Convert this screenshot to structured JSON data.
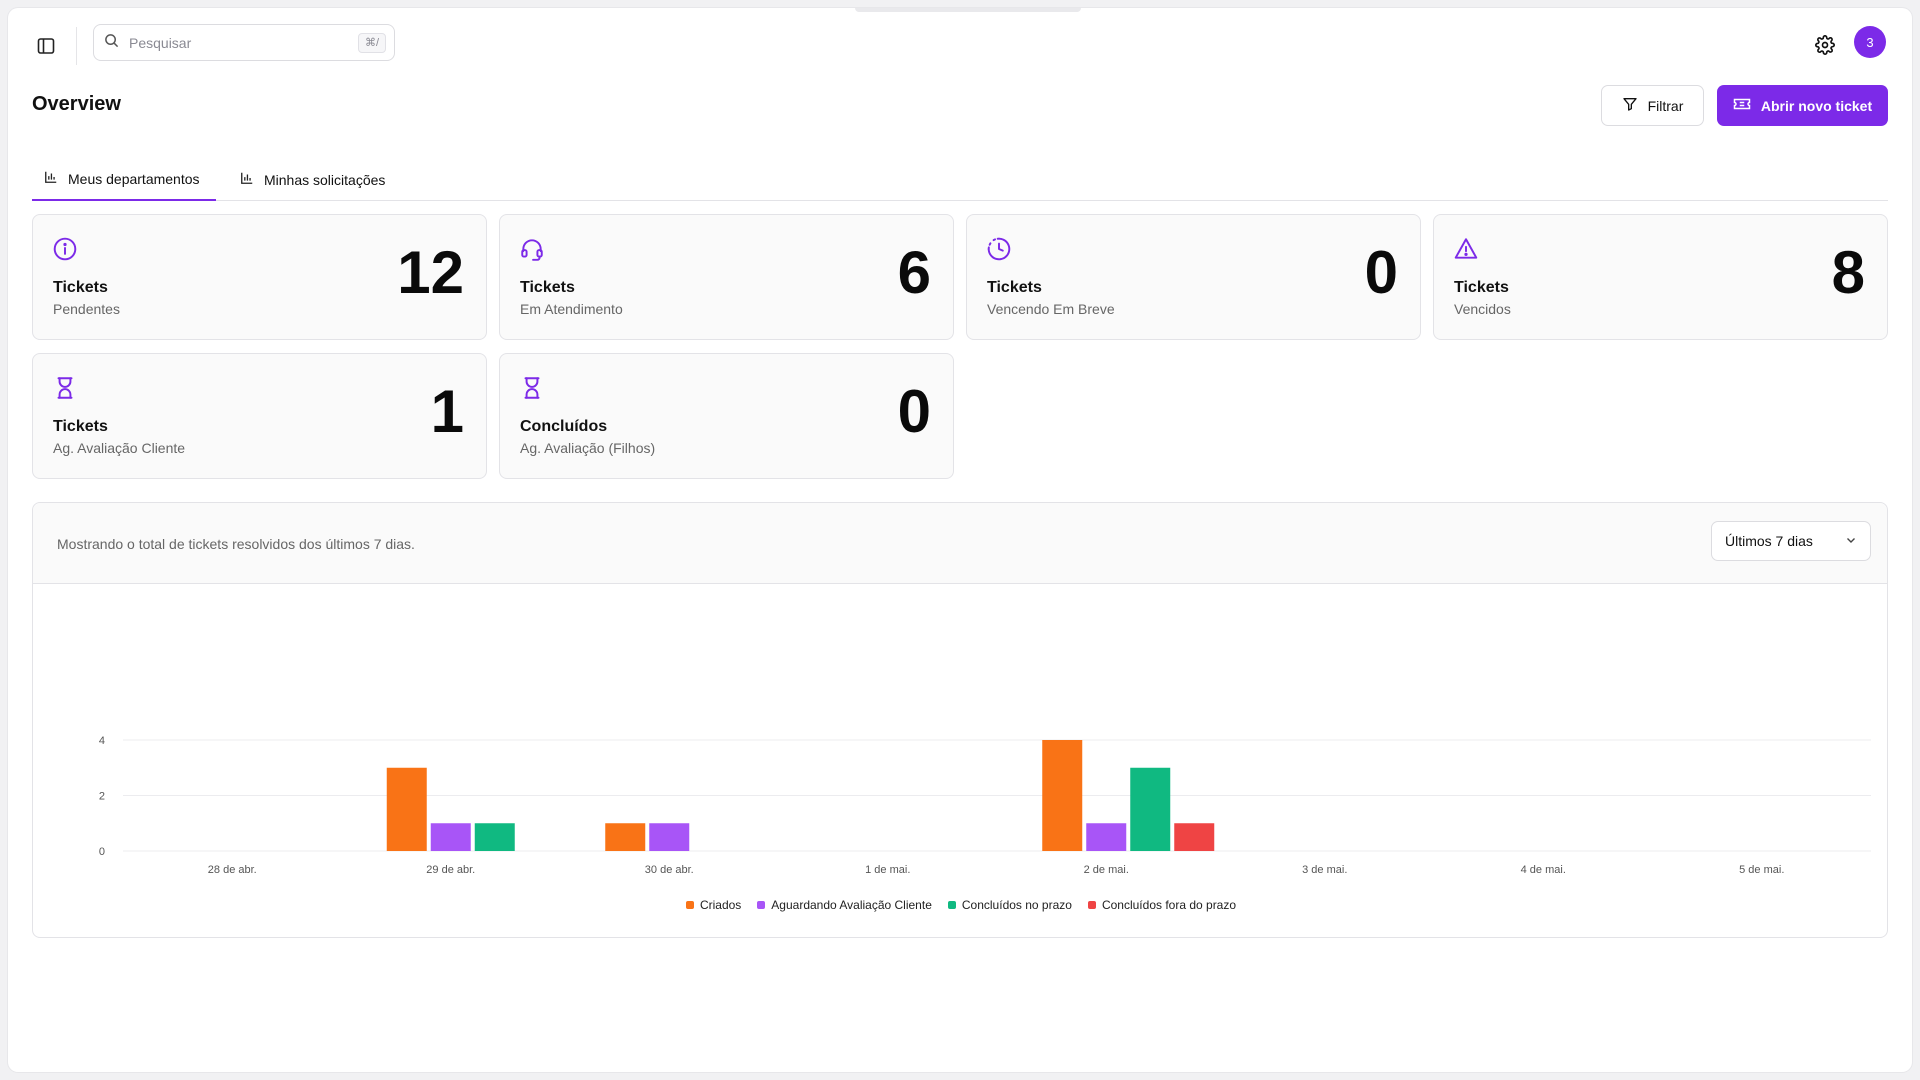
{
  "search": {
    "placeholder": "Pesquisar",
    "shortcut": "⌘/"
  },
  "user": {
    "avatar_text": "3"
  },
  "header": {
    "title": "Overview",
    "filter_label": "Filtrar",
    "new_ticket_label": "Abrir novo ticket"
  },
  "tabs": [
    {
      "label": "Meus departamentos",
      "active": true
    },
    {
      "label": "Minhas solicitações",
      "active": false
    }
  ],
  "cards": [
    {
      "icon": "info-icon",
      "title": "Tickets",
      "subtitle": "Pendentes",
      "value": "12"
    },
    {
      "icon": "headset-icon",
      "title": "Tickets",
      "subtitle": "Em Atendimento",
      "value": "6"
    },
    {
      "icon": "clock-icon",
      "title": "Tickets",
      "subtitle": "Vencendo Em Breve",
      "value": "0"
    },
    {
      "icon": "warning-icon",
      "title": "Tickets",
      "subtitle": "Vencidos",
      "value": "8"
    },
    {
      "icon": "hourglass-icon",
      "title": "Tickets",
      "subtitle": "Ag. Avaliação Cliente",
      "value": "1"
    },
    {
      "icon": "hourglass-icon",
      "title": "Concluídos",
      "subtitle": "Ag. Avaliação (Filhos)",
      "value": "0"
    }
  ],
  "panel": {
    "description": "Mostrando o total de tickets resolvidos dos últimos 7 dias.",
    "range_label": "Últimos 7 dias"
  },
  "colors": {
    "accent": "#7c2ae8",
    "orange": "#f97316",
    "purple": "#a855f7",
    "green": "#10b981",
    "red": "#ef4444"
  },
  "chart_data": {
    "type": "bar",
    "categories": [
      "28 de abr.",
      "29 de abr.",
      "30 de abr.",
      "1 de mai.",
      "2 de mai.",
      "3 de mai.",
      "4 de mai.",
      "5 de mai."
    ],
    "series": [
      {
        "name": "Criados",
        "color": "#f97316",
        "values": [
          0,
          3,
          1,
          0,
          4,
          0,
          0,
          0
        ]
      },
      {
        "name": "Aguardando Avaliação Cliente",
        "color": "#a855f7",
        "values": [
          0,
          1,
          1,
          0,
          1,
          0,
          0,
          0
        ]
      },
      {
        "name": "Concluídos no prazo",
        "color": "#10b981",
        "values": [
          0,
          1,
          0,
          0,
          3,
          0,
          0,
          0
        ]
      },
      {
        "name": "Concluídos fora do prazo",
        "color": "#ef4444",
        "values": [
          0,
          0,
          0,
          0,
          1,
          0,
          0,
          0
        ]
      }
    ],
    "yticks": [
      0,
      2,
      4
    ],
    "ylim": [
      0,
      4
    ],
    "grid": true,
    "legend": "bottom-center"
  }
}
